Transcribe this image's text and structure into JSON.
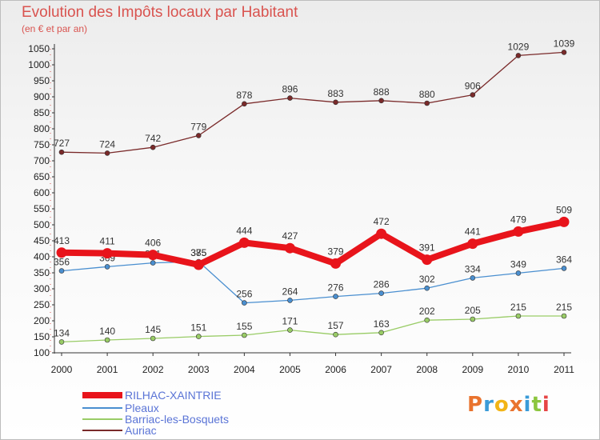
{
  "header": {
    "title": "Evolution des Impôts locaux par Habitant",
    "subtitle": "(en € et par an)"
  },
  "logo": {
    "text": "Proxiti",
    "colors": [
      "#e9732e",
      "#3a9bd8",
      "#f2b416",
      "#e9732e",
      "#3a9bd8",
      "#8cc63e",
      "#e64545"
    ]
  },
  "colors": {
    "title": "#d9534f",
    "legend_text": "#5a74d6",
    "axis": "#333333",
    "grid": "#d9534f"
  },
  "chart_data": {
    "type": "line",
    "title": "Evolution des Impôts locaux par Habitant",
    "subtitle": "(en € et par an)",
    "xlabel": "",
    "ylabel": "",
    "x": [
      "2000",
      "2001",
      "2002",
      "2003",
      "2004",
      "2005",
      "2006",
      "2007",
      "2008",
      "2009",
      "2010",
      "2011"
    ],
    "ylim": [
      100,
      1050
    ],
    "yticks": [
      100,
      150,
      200,
      250,
      300,
      350,
      400,
      450,
      500,
      550,
      600,
      650,
      700,
      750,
      800,
      850,
      900,
      950,
      1000,
      1050
    ],
    "legend_position": "bottom-left",
    "series": [
      {
        "name": "RILHAC-XAINTRIE",
        "color": "#e8141b",
        "values": [
          413,
          411,
          406,
          375,
          444,
          427,
          379,
          472,
          391,
          441,
          479,
          509
        ],
        "labels": [
          "413",
          "411",
          "406",
          "375",
          "444",
          "427",
          "379",
          "472",
          "391",
          "441",
          "479",
          "509"
        ]
      },
      {
        "name": "Pleaux",
        "color": "#4a8fd0",
        "values": [
          356,
          369,
          381,
          385,
          256,
          264,
          276,
          286,
          302,
          334,
          349,
          364
        ],
        "labels": [
          "356",
          "369",
          "381",
          "385",
          "256",
          "264",
          "276",
          "286",
          "302",
          "334",
          "349",
          "364"
        ]
      },
      {
        "name": "Barriac-les-Bosquets",
        "color": "#99cc66",
        "values": [
          134,
          140,
          145,
          151,
          155,
          171,
          157,
          163,
          202,
          205,
          215,
          215
        ],
        "labels": [
          "134",
          "140",
          "145",
          "151",
          "155",
          "171",
          "157",
          "163",
          "202",
          "205",
          "215",
          "215"
        ]
      },
      {
        "name": "Auriac",
        "color": "#7a2a2a",
        "values": [
          727,
          724,
          742,
          779,
          878,
          896,
          883,
          888,
          880,
          906,
          1029,
          1039
        ],
        "labels": [
          "727",
          "724",
          "742",
          "779",
          "878",
          "896",
          "883",
          "888",
          "880",
          "906",
          "1029",
          "1039"
        ]
      }
    ]
  }
}
